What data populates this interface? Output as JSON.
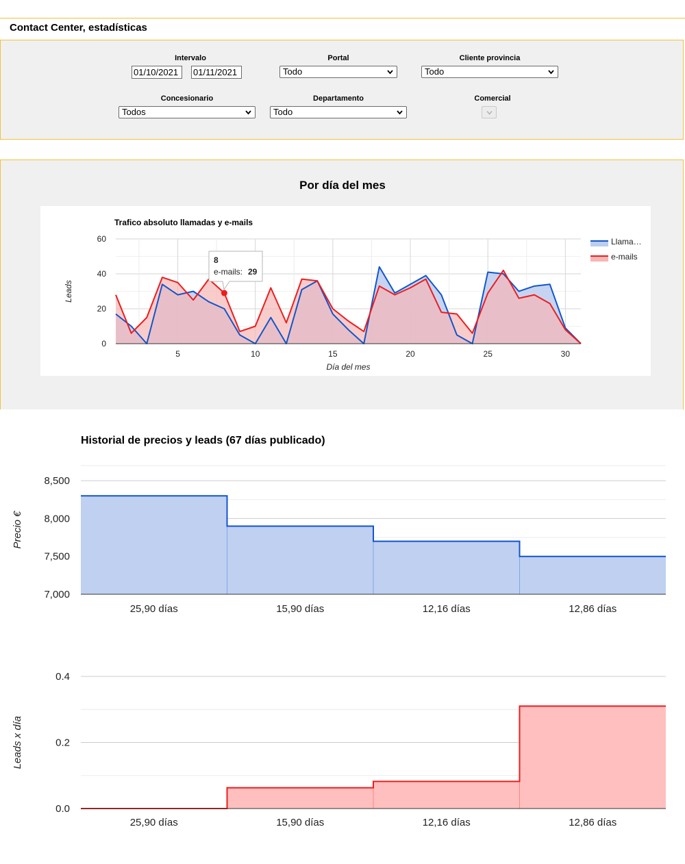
{
  "page_title": "Contact Center, estadísticas",
  "filters": {
    "intervalo": {
      "label": "Intervalo",
      "from": "01/10/2021",
      "to": "01/11/2021"
    },
    "portal": {
      "label": "Portal",
      "value": "Todo"
    },
    "cliente_provincia": {
      "label": "Cliente provincia",
      "value": "Todo"
    },
    "concesionario": {
      "label": "Concesionario",
      "value": "Todos"
    },
    "departamento": {
      "label": "Departamento",
      "value": "Todo"
    },
    "comercial": {
      "label": "Comercial",
      "value": ""
    }
  },
  "month_section": {
    "heading": "Por día del mes"
  },
  "history_section": {
    "title": "Historial de precios y leads (67 días publicado)"
  },
  "chart_data": [
    {
      "type": "area",
      "title": "Trafico absoluto llamadas y e-mails",
      "xlabel": "Día del mes",
      "ylabel": "Leads",
      "xlim": [
        1,
        31
      ],
      "ylim": [
        0,
        60
      ],
      "x_ticks": [
        5,
        10,
        15,
        20,
        25,
        30
      ],
      "y_ticks": [
        0,
        20,
        40,
        60
      ],
      "grid": true,
      "legend": "right",
      "x": [
        1,
        2,
        3,
        4,
        5,
        6,
        7,
        8,
        9,
        10,
        11,
        12,
        13,
        14,
        15,
        16,
        17,
        18,
        19,
        20,
        21,
        22,
        23,
        24,
        25,
        26,
        27,
        28,
        29,
        30,
        31
      ],
      "series": [
        {
          "name": "Llama…",
          "color": "#1155cc",
          "fill": "#bccdf0",
          "values": [
            17,
            10,
            0,
            34,
            28,
            30,
            24,
            20,
            5,
            0,
            15,
            0,
            31,
            36,
            17,
            8,
            0,
            44,
            29,
            34,
            39,
            28,
            5,
            0,
            41,
            40,
            30,
            33,
            34,
            9,
            0
          ]
        },
        {
          "name": "e-mails",
          "color": "#ee1c1c",
          "fill": "#f7b6b6",
          "values": [
            28,
            6,
            15,
            38,
            35,
            25,
            37,
            29,
            7,
            10,
            32,
            12,
            37,
            36,
            20,
            13,
            7,
            33,
            28,
            32,
            37,
            18,
            17,
            6,
            29,
            42,
            26,
            28,
            23,
            8,
            0
          ]
        }
      ],
      "tooltip": {
        "x_label": "8",
        "series": "e-mails",
        "label": "e-mails:",
        "value": "29"
      }
    },
    {
      "type": "area",
      "title": "",
      "ylabel": "Precio €",
      "ylim": [
        7000,
        8700
      ],
      "y_ticks": [
        7000,
        7500,
        8000,
        8500
      ],
      "y_tick_labels": [
        "7,000",
        "7,500",
        "8,000",
        "8,500"
      ],
      "categories": [
        "25,90 días",
        "15,90 días",
        "12,16 días",
        "12,86 días"
      ],
      "values": [
        8300,
        7900,
        7700,
        7500
      ],
      "color": "#1155cc",
      "fill": "#bfd0f1",
      "grid": true
    },
    {
      "type": "area",
      "title": "",
      "ylabel": "Leads x día",
      "ylim": [
        0,
        0.4
      ],
      "y_ticks": [
        0,
        0.2,
        0.4
      ],
      "y_tick_labels": [
        "0.0",
        "0.2",
        "0.4"
      ],
      "categories": [
        "25,90 días",
        "15,90 días",
        "12,16 días",
        "12,86 días"
      ],
      "values": [
        0,
        0.063,
        0.082,
        0.31
      ],
      "color": "#ee1c1c",
      "fill": "#ffbfbf",
      "grid": true
    }
  ]
}
